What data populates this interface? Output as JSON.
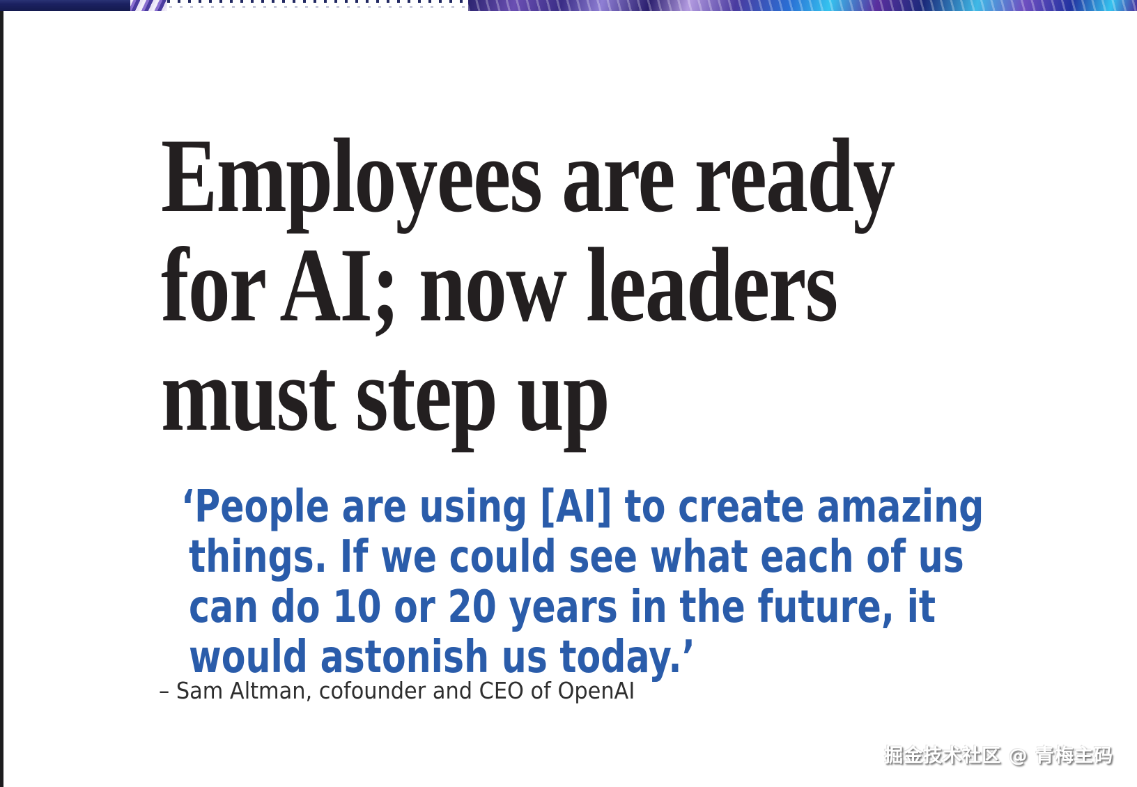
{
  "colors": {
    "headline-color": "#231f20",
    "quote-color": "#2a5caa",
    "attribution-color": "#2e2e2e",
    "left-border-color": "#1c1c1e",
    "strip-navy": "#1b2161"
  },
  "headline": {
    "lines": [
      "Employees are ready",
      "for AI; now leaders",
      "must step up"
    ]
  },
  "quote": {
    "lines": [
      "‘People are using [AI] to create amazing",
      "things. If we could see what each of us",
      "can do 10 or 20 years in the future, it",
      "would astonish us today.’"
    ]
  },
  "attribution": {
    "text": "– Sam Altman, cofounder and CEO of OpenAI"
  },
  "watermark": {
    "text": "掘金技术社区 @ 青梅主码"
  }
}
